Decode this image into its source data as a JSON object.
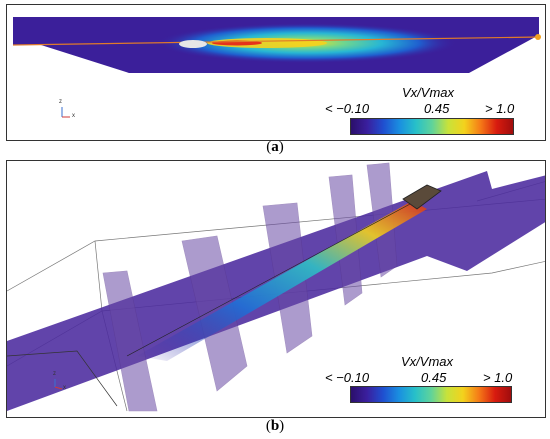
{
  "panels": [
    {
      "caption_open": "(",
      "letter": "a",
      "caption_close": ")",
      "colorbar": {
        "title": "Vx/Vmax",
        "min_label": "< −0.10",
        "mid_label": "0.45",
        "max_label": "> 1.0"
      },
      "axis": {
        "z": "z",
        "x": "x"
      }
    },
    {
      "caption_open": "(",
      "letter": "b",
      "caption_close": ")",
      "colorbar": {
        "title": "Vx/Vmax",
        "min_label": "< −0.10",
        "mid_label": "0.45",
        "max_label": "> 1.0"
      },
      "axis": {
        "z": "z",
        "x": "x"
      }
    }
  ],
  "colormap": [
    "#2b0f6b",
    "#3a1f9e",
    "#1f4fd0",
    "#1a8fe0",
    "#27c0c9",
    "#5fd39b",
    "#c8e23a",
    "#f3d21d",
    "#f57a17",
    "#d81b0f",
    "#a00d0d"
  ]
}
